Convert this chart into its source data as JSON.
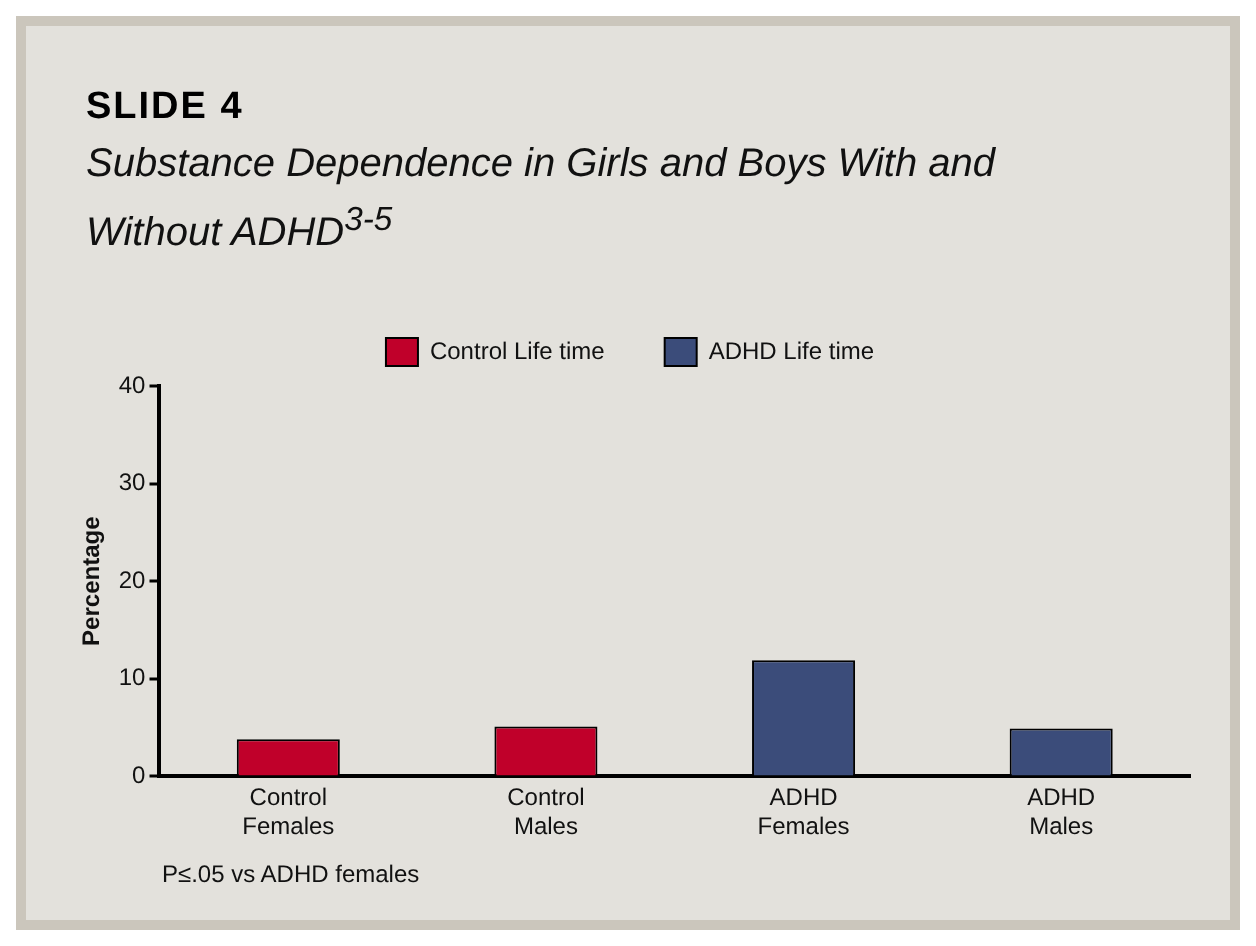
{
  "chart_data": {
    "type": "bar",
    "title": "SLIDE 4",
    "subtitle": "Substance Dependence in Girls and Boys With and Without ADHD$^{3-5}$",
    "ylabel": "Percentage",
    "categories": [
      "Control\nFemales",
      "Control\nMales",
      "ADHD\nFemales",
      "ADHD\nMales"
    ],
    "series": [
      {
        "name": "Control Life time",
        "color": "#c0002a",
        "values": [
          3.8,
          5.1,
          null,
          null
        ]
      },
      {
        "name": "ADHD Life time",
        "color": "#3b4c7a",
        "values": [
          null,
          null,
          11.9,
          4.9
        ]
      }
    ],
    "ylim": [
      0,
      40
    ],
    "yticks": [
      0,
      10,
      20,
      30,
      40
    ],
    "grid": false,
    "legend": "top",
    "annotations": [
      "P≤.05 vs ADHD females"
    ]
  }
}
